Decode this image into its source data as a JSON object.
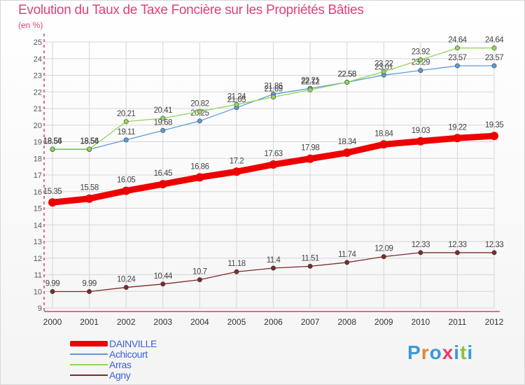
{
  "header": {
    "title": "Evolution du Taux de Taxe Foncière sur les Propriétés Bâties",
    "unit": "(en %)"
  },
  "logo": {
    "text": "Proxiti"
  },
  "colors": {
    "axis": "#e8356a",
    "grid": "#d6d6d6",
    "label": "#555555"
  },
  "chart_data": {
    "type": "line",
    "title": "Evolution du Taux de Taxe Foncière sur les Propriétés Bâties",
    "ylabel": "(en %)",
    "xlabel": "",
    "x": [
      2000,
      2001,
      2002,
      2003,
      2004,
      2005,
      2006,
      2007,
      2008,
      2009,
      2010,
      2011,
      2012
    ],
    "ylim": [
      9,
      25
    ],
    "yticks": [
      9,
      10,
      11,
      12,
      13,
      14,
      15,
      16,
      17,
      18,
      19,
      20,
      21,
      22,
      23,
      24,
      25
    ],
    "grid": true,
    "legend_position": "bottom-left",
    "series": [
      {
        "name": "Agny",
        "color": "#7a2a2a",
        "values": [
          9.99,
          9.99,
          10.24,
          10.44,
          10.7,
          11.18,
          11.4,
          11.51,
          11.74,
          12.09,
          12.33,
          12.33,
          12.33
        ],
        "labels": [
          "9.99",
          "9.99",
          "10.24",
          "10.44",
          "10.7",
          "11.18",
          "11.4",
          "11.51",
          "11.74",
          "12.09",
          "12.33",
          "12.33",
          "12.33"
        ]
      },
      {
        "name": "Achicourt",
        "color": "#5b9bd5",
        "values": [
          18.54,
          18.54,
          19.11,
          19.68,
          20.25,
          21.05,
          21.86,
          22.21,
          22.58,
          23.01,
          23.29,
          23.57,
          23.57
        ],
        "labels": [
          "18.54",
          "18.54",
          "19.11",
          "19.68",
          "20.25",
          "21.05",
          "21.86",
          "22.21",
          "22.58",
          "23.01",
          "23.29",
          "23.57",
          "23.57"
        ]
      },
      {
        "name": "Arras",
        "color": "#8fd65a",
        "values": [
          18.56,
          18.56,
          20.21,
          20.41,
          20.82,
          21.24,
          21.69,
          22.12,
          22.58,
          23.22,
          23.92,
          24.64,
          24.64
        ],
        "labels": [
          "18.56",
          "18.56",
          "20.21",
          "20.41",
          "20.82",
          "21.24",
          "21.69",
          "22.12",
          "22.58",
          "23.22",
          "23.92",
          "24.64",
          "24.64"
        ]
      },
      {
        "name": "DAINVILLE",
        "color": "#ee0000",
        "values": [
          15.35,
          15.58,
          16.05,
          16.45,
          16.86,
          17.2,
          17.63,
          17.98,
          18.34,
          18.84,
          19.03,
          19.22,
          19.35
        ],
        "labels": [
          "15.35",
          "15.58",
          "16.05",
          "16.45",
          "16.86",
          "17.2",
          "17.63",
          "17.98",
          "18.34",
          "18.84",
          "19.03",
          "19.22",
          "19.35"
        ]
      }
    ]
  },
  "legend": {
    "items": [
      {
        "name": "DAINVILLE",
        "color": "#ee0000",
        "thick": true
      },
      {
        "name": "Achicourt",
        "color": "#5b9bd5",
        "thick": false
      },
      {
        "name": "Arras",
        "color": "#8fd65a",
        "thick": false
      },
      {
        "name": "Agny",
        "color": "#7a2a2a",
        "thick": false
      }
    ]
  }
}
